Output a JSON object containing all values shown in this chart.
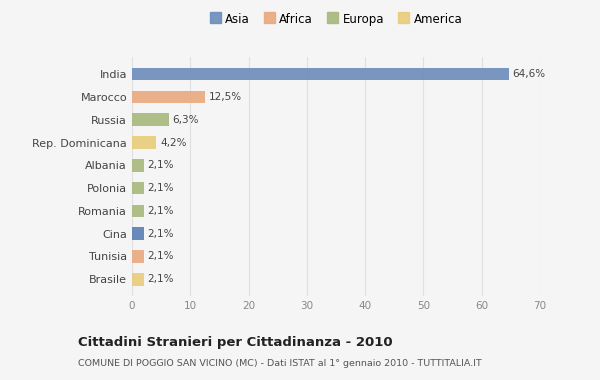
{
  "countries": [
    "India",
    "Marocco",
    "Russia",
    "Rep. Dominicana",
    "Albania",
    "Polonia",
    "Romania",
    "Cina",
    "Tunisia",
    "Brasile"
  ],
  "values": [
    64.6,
    12.5,
    6.3,
    4.2,
    2.1,
    2.1,
    2.1,
    2.1,
    2.1,
    2.1
  ],
  "labels": [
    "64,6%",
    "12,5%",
    "6,3%",
    "4,2%",
    "2,1%",
    "2,1%",
    "2,1%",
    "2,1%",
    "2,1%",
    "2,1%"
  ],
  "colors": [
    "#6b8cba",
    "#e8a97e",
    "#a8b87a",
    "#e8cc7a",
    "#a8b87a",
    "#a8b87a",
    "#a8b87a",
    "#5b7db5",
    "#e8a97e",
    "#e8cc7a"
  ],
  "continents": [
    "Asia",
    "Africa",
    "Europa",
    "America"
  ],
  "legend_colors": [
    "#6b8cba",
    "#e8a97e",
    "#a8b87a",
    "#e8cc7a"
  ],
  "title": "Cittadini Stranieri per Cittadinanza - 2010",
  "subtitle": "COMUNE DI POGGIO SAN VICINO (MC) - Dati ISTAT al 1° gennaio 2010 - TUTTITALIA.IT",
  "xlim": [
    0,
    70
  ],
  "xticks": [
    0,
    10,
    20,
    30,
    40,
    50,
    60,
    70
  ],
  "background_color": "#f5f5f5",
  "grid_color": "#e0e0e0",
  "bar_height": 0.55
}
